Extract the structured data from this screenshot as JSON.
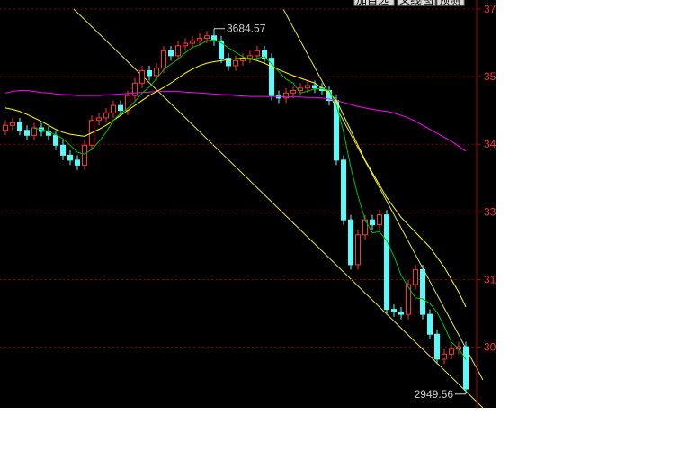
{
  "chart_data": {
    "type": "candlestick",
    "menu": [
      "加自选",
      "叉线",
      "图",
      "预测"
    ],
    "ylim": [
      2922,
      3742
    ],
    "yticks": [
      {
        "value": 3724,
        "label": "37"
      },
      {
        "value": 3588,
        "label": "35"
      },
      {
        "value": 3452,
        "label": "34"
      },
      {
        "value": 3316,
        "label": "33"
      },
      {
        "value": 3180,
        "label": "31"
      },
      {
        "value": 3044,
        "label": "30"
      }
    ],
    "grid": true,
    "up_color": "#ff3232",
    "down_color": "#54fcfc",
    "open": [
      3480,
      3490,
      3495,
      3480,
      3470,
      3485,
      3478,
      3470,
      3450,
      3430,
      3420,
      3410,
      3450,
      3500,
      3505,
      3515,
      3530,
      3520,
      3550,
      3575,
      3600,
      3590,
      3605,
      3640,
      3630,
      3650,
      3655,
      3660,
      3665,
      3670,
      3660,
      3625,
      3610,
      3620,
      3625,
      3630,
      3640,
      3625,
      3550,
      3545,
      3555,
      3560,
      3565,
      3570,
      3565,
      3560,
      3540,
      3420,
      3300,
      3210,
      3270,
      3300,
      3290,
      3310,
      3120,
      3115,
      3110,
      3170,
      3200,
      3110,
      3070,
      3020,
      3030,
      3040,
      3045
    ],
    "high": [
      3500,
      3505,
      3505,
      3490,
      3495,
      3495,
      3488,
      3480,
      3460,
      3440,
      3430,
      3460,
      3510,
      3515,
      3525,
      3540,
      3540,
      3560,
      3585,
      3610,
      3610,
      3615,
      3650,
      3650,
      3660,
      3665,
      3670,
      3675,
      3680,
      3684.57,
      3670,
      3635,
      3630,
      3635,
      3640,
      3650,
      3650,
      3635,
      3560,
      3565,
      3570,
      3575,
      3580,
      3580,
      3575,
      3570,
      3550,
      3430,
      3310,
      3280,
      3310,
      3310,
      3320,
      3320,
      3130,
      3125,
      3180,
      3210,
      3210,
      3120,
      3080,
      3040,
      3050,
      3055,
      3055
    ],
    "low": [
      3470,
      3480,
      3470,
      3460,
      3460,
      3468,
      3460,
      3440,
      3420,
      3410,
      3400,
      3400,
      3440,
      3490,
      3495,
      3505,
      3510,
      3510,
      3540,
      3565,
      3580,
      3580,
      3595,
      3620,
      3620,
      3640,
      3645,
      3650,
      3655,
      3650,
      3615,
      3600,
      3600,
      3610,
      3615,
      3620,
      3615,
      3540,
      3535,
      3535,
      3545,
      3550,
      3555,
      3555,
      3550,
      3530,
      3410,
      3290,
      3200,
      3200,
      3260,
      3280,
      3280,
      3110,
      3105,
      3100,
      3100,
      3160,
      3100,
      3060,
      3010,
      3010,
      3020,
      3030,
      2949.56
    ],
    "close": [
      3490,
      3495,
      3480,
      3470,
      3485,
      3478,
      3470,
      3450,
      3430,
      3420,
      3410,
      3450,
      3500,
      3505,
      3515,
      3530,
      3520,
      3550,
      3575,
      3600,
      3590,
      3605,
      3640,
      3630,
      3650,
      3655,
      3660,
      3665,
      3670,
      3660,
      3625,
      3610,
      3620,
      3625,
      3630,
      3640,
      3625,
      3550,
      3545,
      3555,
      3560,
      3565,
      3570,
      3565,
      3560,
      3540,
      3420,
      3300,
      3210,
      3270,
      3300,
      3290,
      3310,
      3120,
      3115,
      3110,
      3170,
      3200,
      3110,
      3070,
      3020,
      3030,
      3040,
      3045,
      2960
    ],
    "moving_averages": [
      {
        "color": "#ff00ff",
        "values": [
          3555,
          3558,
          3560,
          3560,
          3558,
          3556,
          3555,
          3553,
          3552,
          3551,
          3550,
          3550,
          3550,
          3550,
          3551,
          3552,
          3553,
          3554,
          3555,
          3556,
          3557,
          3558,
          3558,
          3558,
          3558,
          3557,
          3556,
          3555,
          3554,
          3553,
          3552,
          3551,
          3550,
          3549,
          3548,
          3548,
          3548,
          3548,
          3548,
          3547,
          3547,
          3547,
          3546,
          3546,
          3545,
          3543,
          3540,
          3536,
          3532,
          3528,
          3525,
          3522,
          3520,
          3518,
          3515,
          3510,
          3505,
          3498,
          3490,
          3482,
          3474,
          3466,
          3458,
          3448,
          3438
        ]
      },
      {
        "color": "#ffff00",
        "values": [
          3525,
          3522,
          3518,
          3512,
          3505,
          3498,
          3490,
          3482,
          3476,
          3472,
          3470,
          3468,
          3475,
          3482,
          3490,
          3500,
          3510,
          3520,
          3530,
          3540,
          3550,
          3558,
          3566,
          3575,
          3585,
          3595,
          3603,
          3610,
          3615,
          3618,
          3620,
          3622,
          3624,
          3625,
          3624,
          3620,
          3615,
          3608,
          3602,
          3596,
          3590,
          3585,
          3580,
          3575,
          3565,
          3555,
          3540,
          3510,
          3480,
          3450,
          3420,
          3395,
          3370,
          3345,
          3325,
          3305,
          3290,
          3275,
          3260,
          3245,
          3225,
          3205,
          3180,
          3155,
          3125
        ]
      },
      {
        "color": "#00c000",
        "values": [
          null,
          null,
          null,
          null,
          3484,
          3482,
          3477,
          3471,
          3463,
          3450,
          3436,
          3432,
          3442,
          3457,
          3476,
          3500,
          3514,
          3524,
          3538,
          3555,
          3567,
          3584,
          3602,
          3613,
          3623,
          3636,
          3647,
          3652,
          3660,
          3662,
          3656,
          3646,
          3637,
          3628,
          3622,
          3625,
          3628,
          3614,
          3598,
          3583,
          3575,
          3555,
          3559,
          3563,
          3564,
          3560,
          3531,
          3477,
          3406,
          3348,
          3300,
          3274,
          3276,
          3258,
          3227,
          3189,
          3165,
          3143,
          3141,
          3132,
          3114,
          3086,
          3054,
          3041,
          3019
        ]
      }
    ],
    "annotations": [
      3684.57,
      2949.56
    ]
  }
}
